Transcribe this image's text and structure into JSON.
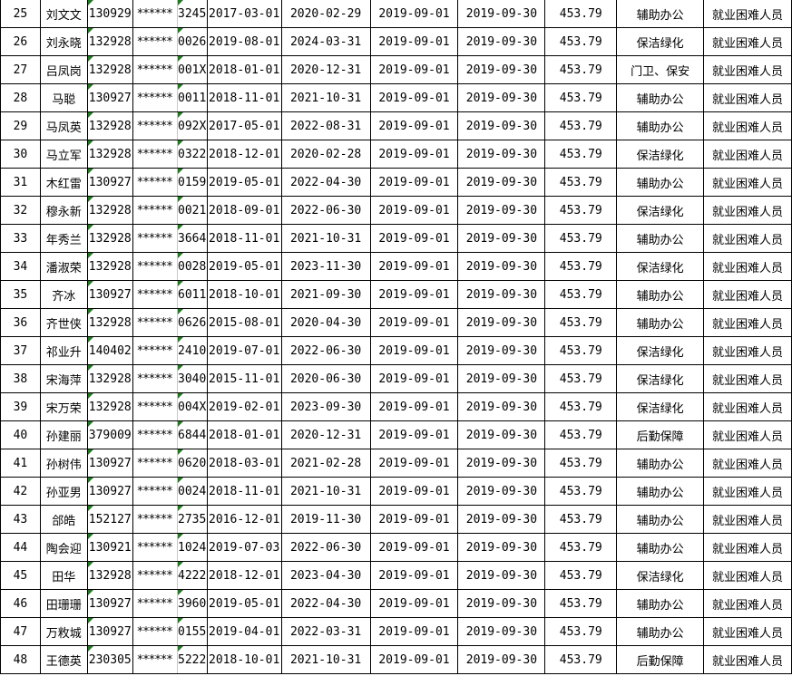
{
  "sheet": {
    "accent_colors": {
      "comment_marker": "#1e7b1e",
      "grid": "#000000"
    },
    "rows": [
      [
        "25",
        "刘文文",
        "130929",
        "******",
        "3245",
        "2017-03-01",
        "2020-02-29",
        "2019-09-01",
        "2019-09-30",
        "453.79",
        "辅助办公",
        "就业困难人员"
      ],
      [
        "26",
        "刘永晓",
        "132928",
        "******",
        "0026",
        "2019-08-01",
        "2024-03-31",
        "2019-09-01",
        "2019-09-30",
        "453.79",
        "保洁绿化",
        "就业困难人员"
      ],
      [
        "27",
        "吕凤岗",
        "132928",
        "******",
        "001X",
        "2018-01-01",
        "2020-12-31",
        "2019-09-01",
        "2019-09-30",
        "453.79",
        "门卫、保安",
        "就业困难人员"
      ],
      [
        "28",
        "马聪",
        "130927",
        "******",
        "0011",
        "2018-11-01",
        "2021-10-31",
        "2019-09-01",
        "2019-09-30",
        "453.79",
        "辅助办公",
        "就业困难人员"
      ],
      [
        "29",
        "马凤英",
        "132928",
        "******",
        "092X",
        "2017-05-01",
        "2022-08-31",
        "2019-09-01",
        "2019-09-30",
        "453.79",
        "辅助办公",
        "就业困难人员"
      ],
      [
        "30",
        "马立军",
        "132928",
        "******",
        "0322",
        "2018-12-01",
        "2020-02-28",
        "2019-09-01",
        "2019-09-30",
        "453.79",
        "保洁绿化",
        "就业困难人员"
      ],
      [
        "31",
        "木红雷",
        "130927",
        "******",
        "0159",
        "2019-05-01",
        "2022-04-30",
        "2019-09-01",
        "2019-09-30",
        "453.79",
        "辅助办公",
        "就业困难人员"
      ],
      [
        "32",
        "穆永新",
        "132928",
        "******",
        "0021",
        "2018-09-01",
        "2022-06-30",
        "2019-09-01",
        "2019-09-30",
        "453.79",
        "保洁绿化",
        "就业困难人员"
      ],
      [
        "33",
        "年秀兰",
        "132928",
        "******",
        "3664",
        "2018-11-01",
        "2021-10-31",
        "2019-09-01",
        "2019-09-30",
        "453.79",
        "辅助办公",
        "就业困难人员"
      ],
      [
        "34",
        "潘淑荣",
        "132928",
        "******",
        "0028",
        "2019-05-01",
        "2023-11-30",
        "2019-09-01",
        "2019-09-30",
        "453.79",
        "保洁绿化",
        "就业困难人员"
      ],
      [
        "35",
        "齐冰",
        "130927",
        "******",
        "6011",
        "2018-10-01",
        "2021-09-30",
        "2019-09-01",
        "2019-09-30",
        "453.79",
        "辅助办公",
        "就业困难人员"
      ],
      [
        "36",
        "齐世侠",
        "132928",
        "******",
        "0626",
        "2015-08-01",
        "2020-04-30",
        "2019-09-01",
        "2019-09-30",
        "453.79",
        "辅助办公",
        "就业困难人员"
      ],
      [
        "37",
        "祁业升",
        "140402",
        "******",
        "2410",
        "2019-07-01",
        "2022-06-30",
        "2019-09-01",
        "2019-09-30",
        "453.79",
        "保洁绿化",
        "就业困难人员"
      ],
      [
        "38",
        "宋海萍",
        "132928",
        "******",
        "3040",
        "2015-11-01",
        "2020-06-30",
        "2019-09-01",
        "2019-09-30",
        "453.79",
        "保洁绿化",
        "就业困难人员"
      ],
      [
        "39",
        "宋万荣",
        "132928",
        "******",
        "004X",
        "2019-02-01",
        "2023-09-30",
        "2019-09-01",
        "2019-09-30",
        "453.79",
        "保洁绿化",
        "就业困难人员"
      ],
      [
        "40",
        "孙建丽",
        "379009",
        "******",
        "6844",
        "2018-01-01",
        "2020-12-31",
        "2019-09-01",
        "2019-09-30",
        "453.79",
        "后勤保障",
        "就业困难人员"
      ],
      [
        "41",
        "孙树伟",
        "130927",
        "******",
        "0620",
        "2018-03-01",
        "2021-02-28",
        "2019-09-01",
        "2019-09-30",
        "453.79",
        "辅助办公",
        "就业困难人员"
      ],
      [
        "42",
        "孙亚男",
        "130927",
        "******",
        "0024",
        "2018-11-01",
        "2021-10-31",
        "2019-09-01",
        "2019-09-30",
        "453.79",
        "辅助办公",
        "就业困难人员"
      ],
      [
        "43",
        "郃皓",
        "152127",
        "******",
        "2735",
        "2016-12-01",
        "2019-11-30",
        "2019-09-01",
        "2019-09-30",
        "453.79",
        "辅助办公",
        "就业困难人员"
      ],
      [
        "44",
        "陶会迎",
        "130921",
        "******",
        "1024",
        "2019-07-03",
        "2022-06-30",
        "2019-09-01",
        "2019-09-30",
        "453.79",
        "辅助办公",
        "就业困难人员"
      ],
      [
        "45",
        "田华",
        "132928",
        "******",
        "4222",
        "2018-12-01",
        "2023-04-30",
        "2019-09-01",
        "2019-09-30",
        "453.79",
        "保洁绿化",
        "就业困难人员"
      ],
      [
        "46",
        "田珊珊",
        "130927",
        "******",
        "3960",
        "2019-05-01",
        "2022-04-30",
        "2019-09-01",
        "2019-09-30",
        "453.79",
        "辅助办公",
        "就业困难人员"
      ],
      [
        "47",
        "万敉城",
        "130927",
        "******",
        "0155",
        "2019-04-01",
        "2022-03-31",
        "2019-09-01",
        "2019-09-30",
        "453.79",
        "辅助办公",
        "就业困难人员"
      ],
      [
        "48",
        "王德英",
        "230305",
        "******",
        "5222",
        "2018-10-01",
        "2021-10-31",
        "2019-09-01",
        "2019-09-30",
        "453.79",
        "后勤保障",
        "就业困难人员"
      ]
    ]
  }
}
